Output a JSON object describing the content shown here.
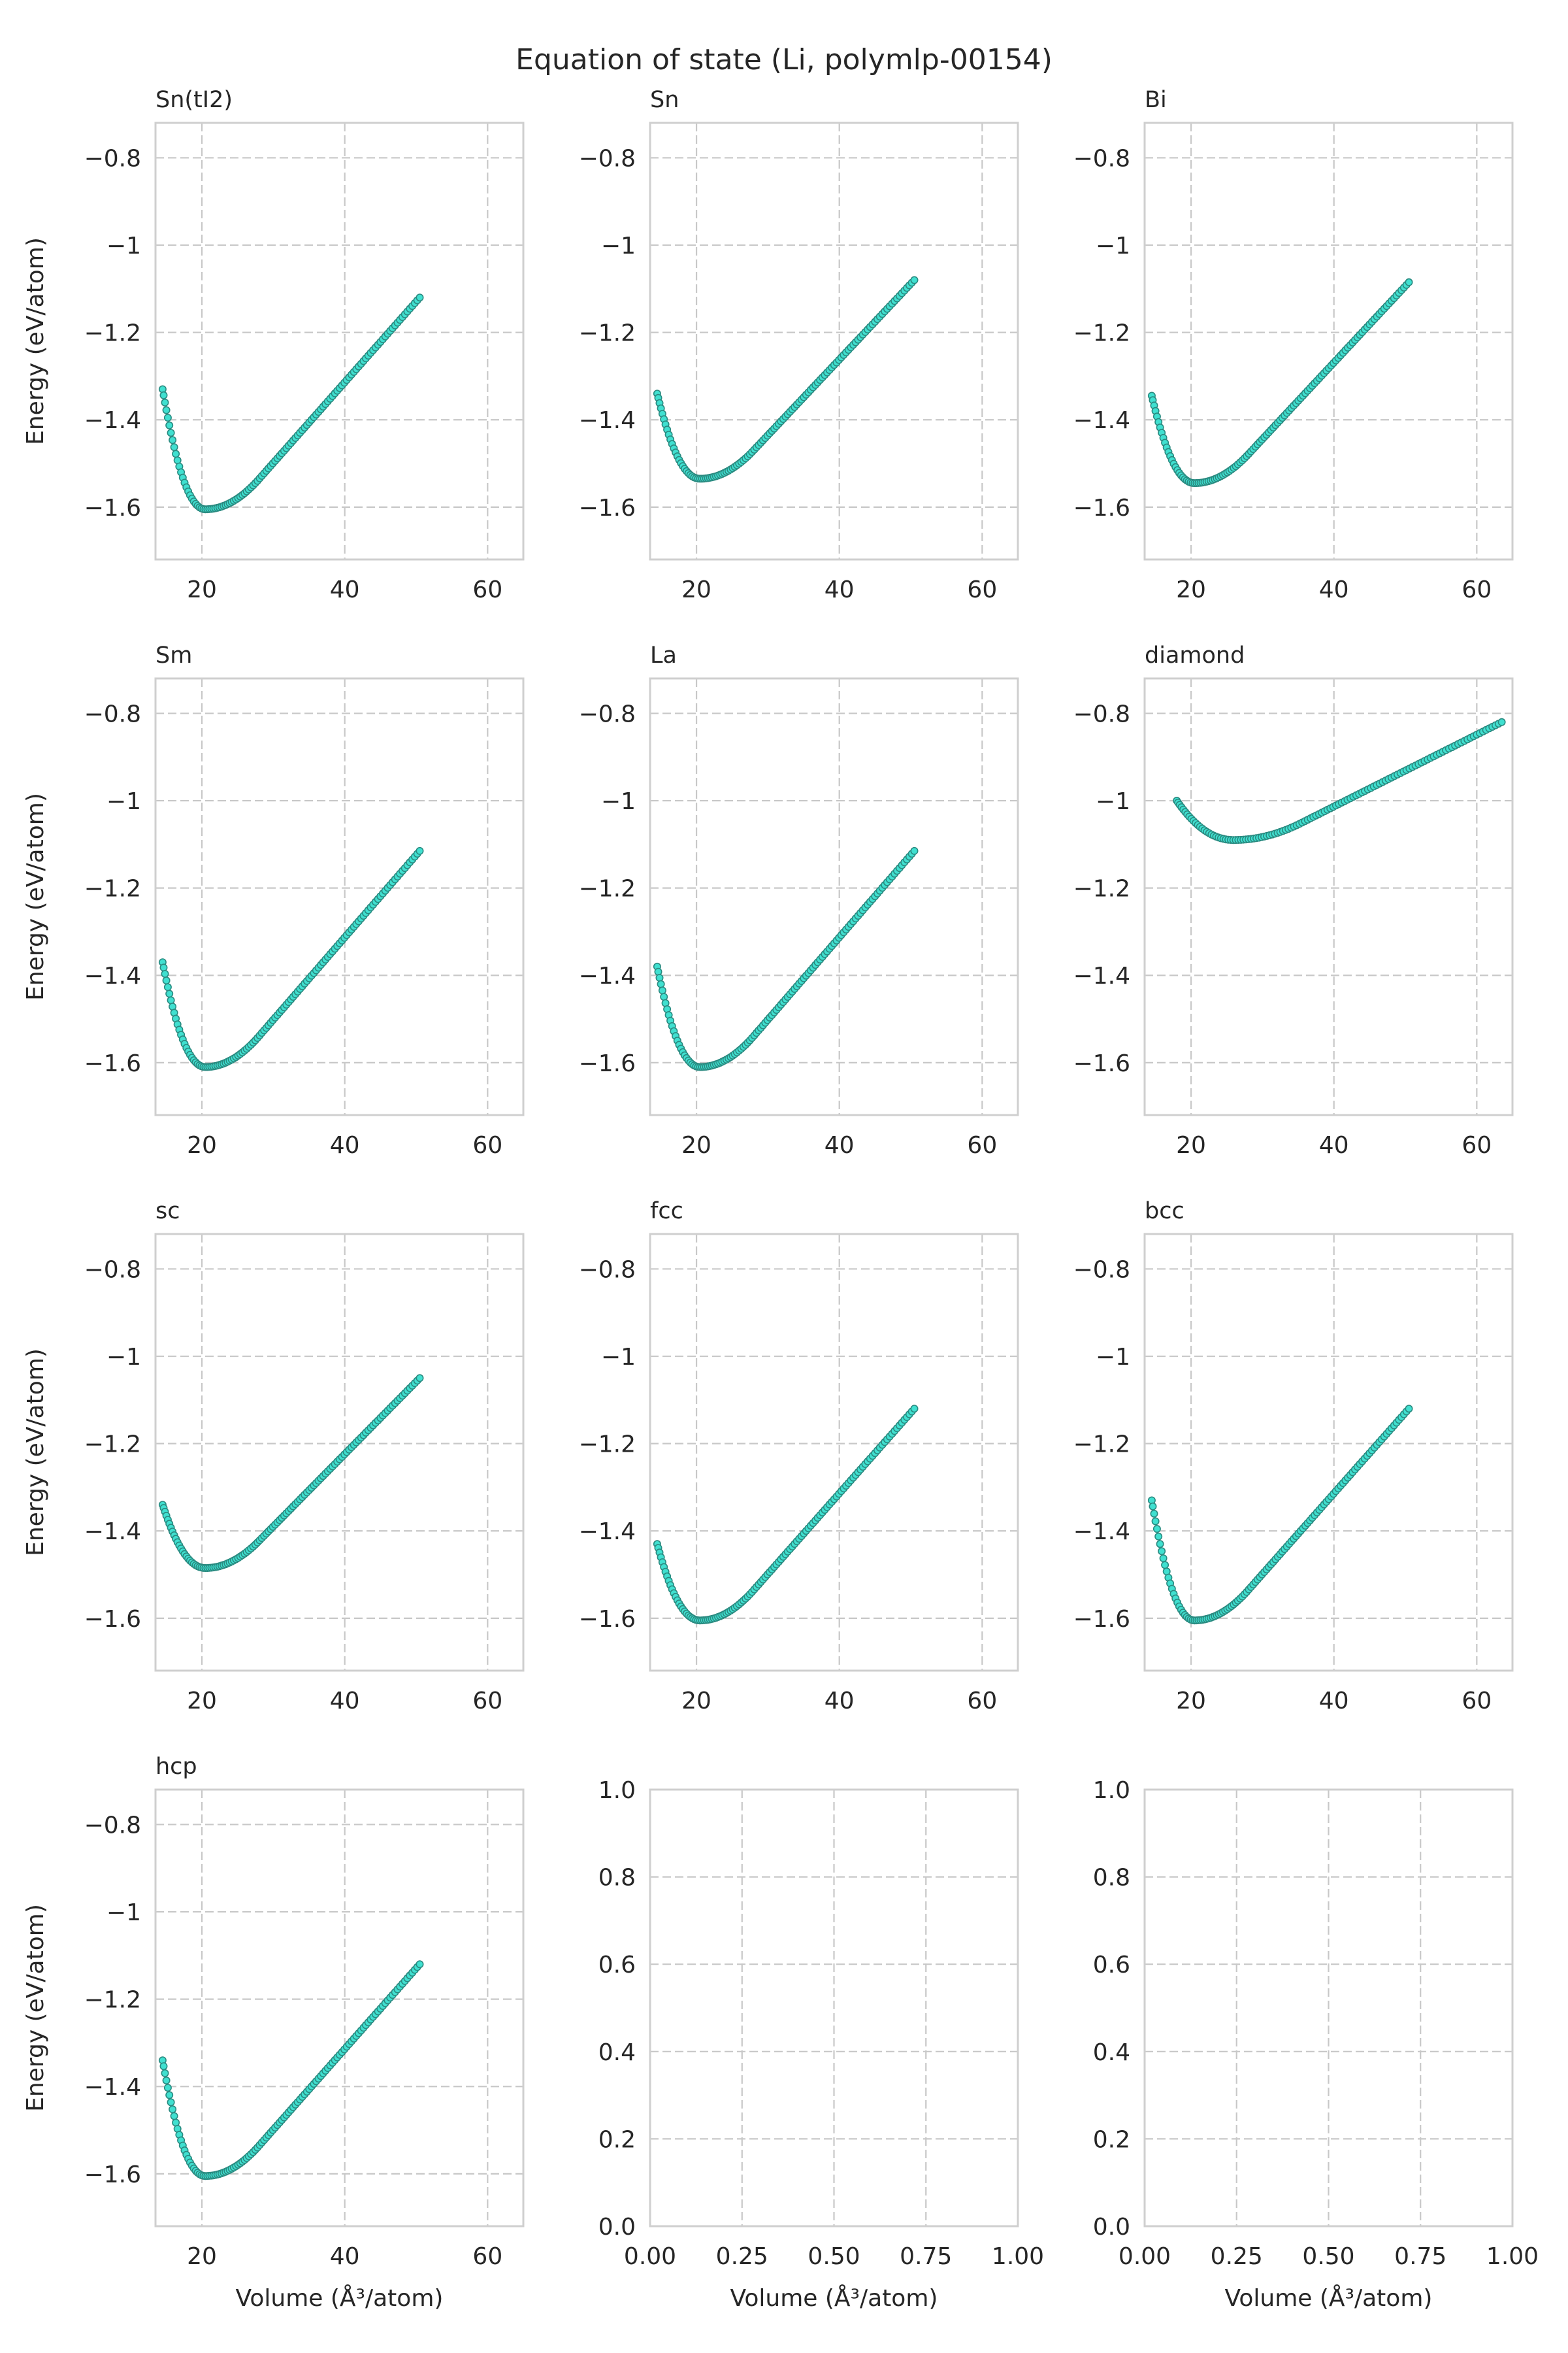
{
  "figure": {
    "title": "Equation of state (Li, polymlp-00154)",
    "xlabel": "Volume (Å³/atom)",
    "ylabel": "Energy (eV/atom)",
    "colors": {
      "marker_fill": "#40e0d0",
      "marker_edge": "#2a8a80",
      "grid": "#c8c8c8",
      "spine": "#cfcfcf"
    }
  },
  "chart_data": [
    {
      "type": "scatter",
      "title": "Sn(tI2)",
      "xlim": [
        13.5,
        65
      ],
      "ylim": [
        -1.72,
        -0.72
      ],
      "xticks": [
        20,
        40,
        60
      ],
      "yticks": [
        -1.6,
        -1.4,
        -1.2,
        -1.0,
        -0.8
      ],
      "xlabel": "",
      "ylabel": "Energy (eV/atom)",
      "grid": true,
      "eos": {
        "V0": 20.5,
        "E0": -1.605,
        "Vmin": 14.5,
        "Vmax": 50.5,
        "Emin_at_Vmin": -1.33,
        "E_at_Vmax": -1.12
      }
    },
    {
      "type": "scatter",
      "title": "Sn",
      "xlim": [
        13.5,
        65
      ],
      "ylim": [
        -1.72,
        -0.72
      ],
      "xticks": [
        20,
        40,
        60
      ],
      "yticks": [
        -1.6,
        -1.4,
        -1.2,
        -1.0,
        -0.8
      ],
      "xlabel": "",
      "ylabel": "",
      "grid": true,
      "eos": {
        "V0": 20.5,
        "E0": -1.535,
        "Vmin": 14.5,
        "Vmax": 50.5,
        "Emin_at_Vmin": -1.34,
        "E_at_Vmax": -1.08
      }
    },
    {
      "type": "scatter",
      "title": "Bi",
      "xlim": [
        13.5,
        65
      ],
      "ylim": [
        -1.72,
        -0.72
      ],
      "xticks": [
        20,
        40,
        60
      ],
      "yticks": [
        -1.6,
        -1.4,
        -1.2,
        -1.0,
        -0.8
      ],
      "xlabel": "",
      "ylabel": "",
      "grid": true,
      "eos": {
        "V0": 20.5,
        "E0": -1.545,
        "Vmin": 14.5,
        "Vmax": 50.5,
        "Emin_at_Vmin": -1.345,
        "E_at_Vmax": -1.085
      }
    },
    {
      "type": "scatter",
      "title": "Sm",
      "xlim": [
        13.5,
        65
      ],
      "ylim": [
        -1.72,
        -0.72
      ],
      "xticks": [
        20,
        40,
        60
      ],
      "yticks": [
        -1.6,
        -1.4,
        -1.2,
        -1.0,
        -0.8
      ],
      "xlabel": "",
      "ylabel": "Energy (eV/atom)",
      "grid": true,
      "eos": {
        "V0": 20.5,
        "E0": -1.61,
        "Vmin": 14.5,
        "Vmax": 50.5,
        "Emin_at_Vmin": -1.37,
        "E_at_Vmax": -1.115
      }
    },
    {
      "type": "scatter",
      "title": "La",
      "xlim": [
        13.5,
        65
      ],
      "ylim": [
        -1.72,
        -0.72
      ],
      "xticks": [
        20,
        40,
        60
      ],
      "yticks": [
        -1.6,
        -1.4,
        -1.2,
        -1.0,
        -0.8
      ],
      "xlabel": "",
      "ylabel": "",
      "grid": true,
      "eos": {
        "V0": 20.5,
        "E0": -1.61,
        "Vmin": 14.5,
        "Vmax": 50.5,
        "Emin_at_Vmin": -1.38,
        "E_at_Vmax": -1.115
      }
    },
    {
      "type": "scatter",
      "title": "diamond",
      "xlim": [
        13.5,
        65
      ],
      "ylim": [
        -1.72,
        -0.72
      ],
      "xticks": [
        20,
        40,
        60
      ],
      "yticks": [
        -1.6,
        -1.4,
        -1.2,
        -1.0,
        -0.8
      ],
      "xlabel": "",
      "ylabel": "",
      "grid": true,
      "eos": {
        "V0": 26.0,
        "E0": -1.09,
        "Vmin": 18.0,
        "Vmax": 63.5,
        "Emin_at_Vmin": -1.0,
        "E_at_Vmax": -0.82
      }
    },
    {
      "type": "scatter",
      "title": "sc",
      "xlim": [
        13.5,
        65
      ],
      "ylim": [
        -1.72,
        -0.72
      ],
      "xticks": [
        20,
        40,
        60
      ],
      "yticks": [
        -1.6,
        -1.4,
        -1.2,
        -1.0,
        -0.8
      ],
      "xlabel": "",
      "ylabel": "Energy (eV/atom)",
      "grid": true,
      "eos": {
        "V0": 20.5,
        "E0": -1.485,
        "Vmin": 14.5,
        "Vmax": 50.5,
        "Emin_at_Vmin": -1.34,
        "E_at_Vmax": -1.05
      }
    },
    {
      "type": "scatter",
      "title": "fcc",
      "xlim": [
        13.5,
        65
      ],
      "ylim": [
        -1.72,
        -0.72
      ],
      "xticks": [
        20,
        40,
        60
      ],
      "yticks": [
        -1.6,
        -1.4,
        -1.2,
        -1.0,
        -0.8
      ],
      "xlabel": "",
      "ylabel": "",
      "grid": true,
      "eos": {
        "V0": 20.5,
        "E0": -1.605,
        "Vmin": 14.5,
        "Vmax": 50.5,
        "Emin_at_Vmin": -1.43,
        "E_at_Vmax": -1.12
      }
    },
    {
      "type": "scatter",
      "title": "bcc",
      "xlim": [
        13.5,
        65
      ],
      "ylim": [
        -1.72,
        -0.72
      ],
      "xticks": [
        20,
        40,
        60
      ],
      "yticks": [
        -1.6,
        -1.4,
        -1.2,
        -1.0,
        -0.8
      ],
      "xlabel": "",
      "ylabel": "",
      "grid": true,
      "eos": {
        "V0": 20.5,
        "E0": -1.605,
        "Vmin": 14.5,
        "Vmax": 50.5,
        "Emin_at_Vmin": -1.33,
        "E_at_Vmax": -1.12
      }
    },
    {
      "type": "scatter",
      "title": "hcp",
      "xlim": [
        13.5,
        65
      ],
      "ylim": [
        -1.72,
        -0.72
      ],
      "xticks": [
        20,
        40,
        60
      ],
      "yticks": [
        -1.6,
        -1.4,
        -1.2,
        -1.0,
        -0.8
      ],
      "xlabel": "Volume (Å³/atom)",
      "ylabel": "Energy (eV/atom)",
      "grid": true,
      "eos": {
        "V0": 20.5,
        "E0": -1.605,
        "Vmin": 14.5,
        "Vmax": 50.5,
        "Emin_at_Vmin": -1.34,
        "E_at_Vmax": -1.12
      }
    },
    {
      "type": "scatter",
      "title": "",
      "xlim": [
        0,
        1
      ],
      "ylim": [
        0,
        1
      ],
      "xticks": [
        0.0,
        0.25,
        0.5,
        0.75,
        1.0
      ],
      "yticks": [
        0.0,
        0.2,
        0.4,
        0.6,
        0.8,
        1.0
      ],
      "xlabel": "Volume (Å³/atom)",
      "ylabel": "",
      "grid": true,
      "empty": true
    },
    {
      "type": "scatter",
      "title": "",
      "xlim": [
        0,
        1
      ],
      "ylim": [
        0,
        1
      ],
      "xticks": [
        0.0,
        0.25,
        0.5,
        0.75,
        1.0
      ],
      "yticks": [
        0.0,
        0.2,
        0.4,
        0.6,
        0.8,
        1.0
      ],
      "xlabel": "Volume (Å³/atom)",
      "ylabel": "",
      "grid": true,
      "empty": true
    }
  ]
}
